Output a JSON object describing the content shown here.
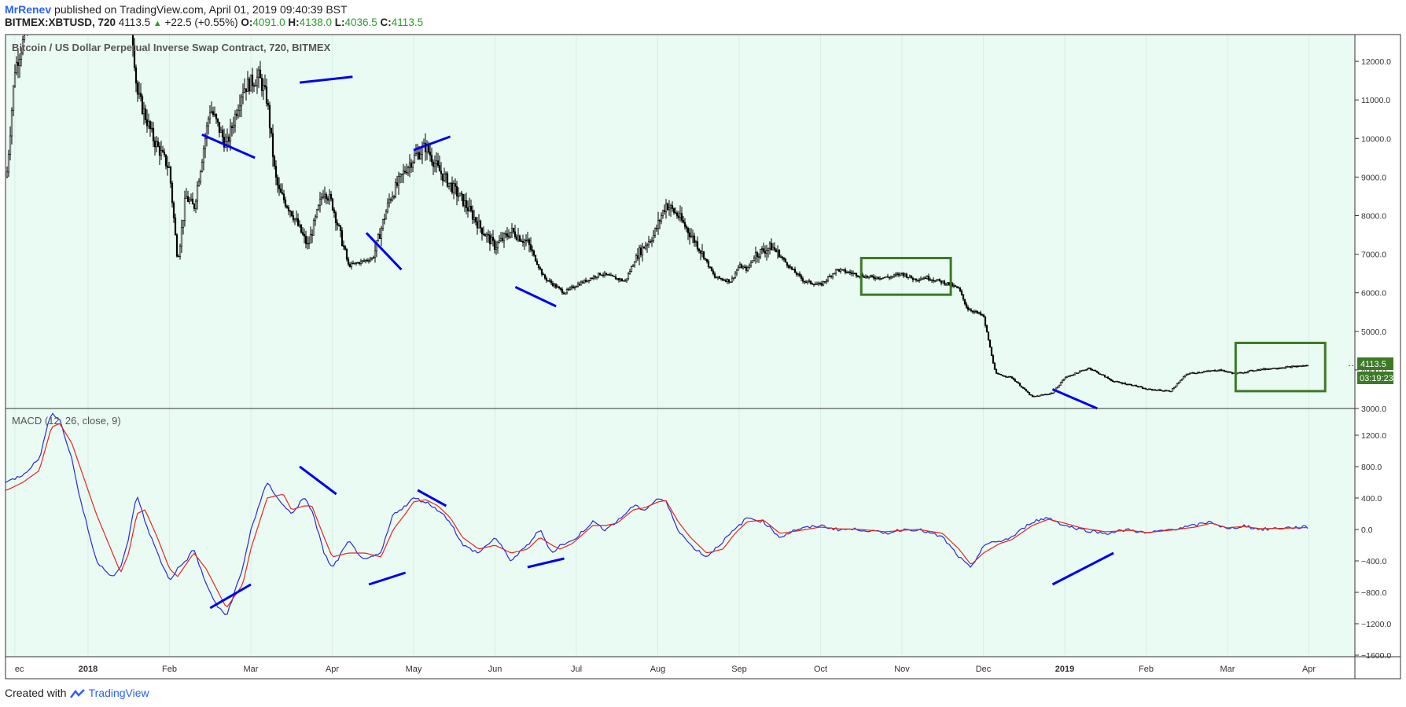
{
  "header": {
    "author": "MrRenev",
    "published_text": "published on TradingView.com, April 01, 2019 09:40:39 BST",
    "symbol": "BITMEX:XBTUSD, 720",
    "last": "4113.5",
    "change": "+22.5 (+0.55%)",
    "open_label": "O:",
    "open": "4091.0",
    "high_label": "H:",
    "high": "4138.0",
    "low_label": "L:",
    "low": "4036.5",
    "close_label": "C:",
    "close": "4113.5"
  },
  "price_pane": {
    "title": "Bitcoin / US Dollar Perpetual Inverse Swap Contract, 720, BITMEX",
    "price_badge": "4113.5",
    "countdown_badge": "03:19:23"
  },
  "macd_pane": {
    "title": "MACD (12, 26, close, 9)"
  },
  "footer": {
    "created_with": "Created with",
    "brand": "TradingView"
  },
  "colors": {
    "pane_bg": "#e9fbf3",
    "candles": "#000000",
    "macd_line": "#2b2bd9",
    "signal_line": "#e8261f",
    "trendlines": "#0000ee",
    "boxes": "#3c7a25",
    "badge": "#3c7a25"
  },
  "chart_data": [
    {
      "type": "candlestick",
      "title": "Bitcoin / US Dollar Perpetual Inverse Swap Contract, 720, BITMEX",
      "y_axis_position": "right",
      "ylim": [
        3000,
        12700
      ],
      "y_ticks": [
        "3000.0",
        "4000.0",
        "5000.0",
        "6000.0",
        "7000.0",
        "8000.0",
        "9000.0",
        "10000.0",
        "11000.0",
        "12000.0"
      ],
      "x_ticks": [
        "ec",
        "2018",
        "Feb",
        "Mar",
        "Apr",
        "May",
        "Jun",
        "Jul",
        "Aug",
        "Sep",
        "Oct",
        "Nov",
        "Dec",
        "2019",
        "Feb",
        "Mar",
        "Apr"
      ],
      "x_tick_months": [
        -0.9,
        0,
        1,
        2,
        3,
        4,
        5,
        6,
        7,
        8,
        9,
        10,
        11,
        12,
        13,
        14,
        15
      ],
      "close_path_months": [
        -1.0,
        -0.9,
        -0.7,
        -0.4,
        0.2,
        0.5,
        0.6,
        0.8,
        1.0,
        1.1,
        1.2,
        1.3,
        1.5,
        1.7,
        1.9,
        2.1,
        2.2,
        2.3,
        2.35,
        2.5,
        2.7,
        2.9,
        3.0,
        3.2,
        3.5,
        3.7,
        3.9,
        4.0,
        4.15,
        4.3,
        4.6,
        4.85,
        5.0,
        5.2,
        5.4,
        5.6,
        5.85,
        6.0,
        6.3,
        6.6,
        6.75,
        6.95,
        7.1,
        7.25,
        7.5,
        7.7,
        7.9,
        8.0,
        8.1,
        8.2,
        8.4,
        8.65,
        8.8,
        9.0,
        9.2,
        9.4,
        9.6,
        9.85,
        10.0,
        10.15,
        10.3,
        10.45,
        10.55,
        10.7,
        10.8,
        11.0,
        11.15,
        11.35,
        11.6,
        11.85,
        12.0,
        12.3,
        12.6,
        12.85,
        13.0,
        13.3,
        13.5,
        13.7,
        13.9,
        14.1,
        14.35,
        14.6,
        14.9,
        15.0
      ],
      "close_path_values": [
        9000,
        11800,
        13200,
        14500,
        13500,
        14000,
        11200,
        10000,
        9200,
        6800,
        8500,
        8200,
        10800,
        9800,
        11300,
        11600,
        11000,
        9000,
        8600,
        8100,
        7200,
        8700,
        8300,
        6700,
        6900,
        8400,
        9200,
        9500,
        9800,
        9200,
        8400,
        7600,
        7200,
        7600,
        7300,
        6400,
        6000,
        6200,
        6500,
        6300,
        7000,
        7500,
        8300,
        8000,
        7200,
        6400,
        6300,
        6700,
        6600,
        7000,
        7200,
        6600,
        6300,
        6200,
        6600,
        6500,
        6400,
        6400,
        6500,
        6350,
        6400,
        6300,
        6250,
        6100,
        5600,
        5400,
        3900,
        3800,
        3300,
        3400,
        3800,
        4050,
        3700,
        3600,
        3500,
        3450,
        3900,
        3950,
        4000,
        3900,
        4000,
        4050,
        4100,
        4113.5
      ],
      "last_price": 4113.5
    },
    {
      "type": "line",
      "title": "MACD (12, 26, close, 9)",
      "y_axis_position": "right",
      "ylim": [
        -1600,
        1400
      ],
      "y_ticks": [
        "1200.0",
        "800.0",
        "400.0",
        "0.0",
        "−400.0",
        "−800.0",
        "−1200.0",
        "−1600.0"
      ],
      "x_months": [
        -1.0,
        -0.8,
        -0.6,
        -0.45,
        -0.35,
        -0.2,
        -0.1,
        0.1,
        0.3,
        0.4,
        0.5,
        0.6,
        0.7,
        0.85,
        1.0,
        1.1,
        1.2,
        1.3,
        1.45,
        1.6,
        1.7,
        1.9,
        2.0,
        2.2,
        2.4,
        2.5,
        2.65,
        2.75,
        2.9,
        3.0,
        3.2,
        3.4,
        3.6,
        3.75,
        3.9,
        4.0,
        4.15,
        4.3,
        4.45,
        4.6,
        4.8,
        5.0,
        5.2,
        5.4,
        5.55,
        5.7,
        5.8,
        5.95,
        6.2,
        6.35,
        6.5,
        6.7,
        6.85,
        7.0,
        7.1,
        7.25,
        7.4,
        7.6,
        7.8,
        7.95,
        8.1,
        8.3,
        8.5,
        8.7,
        9.0,
        9.2,
        9.5,
        9.8,
        10.0,
        10.2,
        10.5,
        10.7,
        10.85,
        11.0,
        11.2,
        11.35,
        11.6,
        11.8,
        12.0,
        12.2,
        12.5,
        12.8,
        13.0,
        13.3,
        13.6,
        13.8,
        14.0,
        14.2,
        14.4,
        14.7,
        15.0
      ],
      "series": [
        {
          "values": [
            600,
            700,
            900,
            1500,
            1400,
            900,
            400,
            -400,
            -600,
            -500,
            -100,
            450,
            100,
            -300,
            -650,
            -500,
            -400,
            -250,
            -700,
            -1000,
            -1100,
            -500,
            0,
            600,
            300,
            200,
            400,
            250,
            -300,
            -500,
            -150,
            -400,
            -300,
            200,
            300,
            400,
            350,
            250,
            100,
            -200,
            -300,
            -100,
            -400,
            -200,
            0,
            -300,
            -200,
            -150,
            100,
            0,
            100,
            300,
            250,
            400,
            350,
            0,
            -200,
            -350,
            -150,
            0,
            150,
            100,
            -100,
            0,
            50,
            0,
            0,
            -50,
            0,
            0,
            -100,
            -350,
            -500,
            -200,
            -150,
            -100,
            100,
            150,
            50,
            0,
            -50,
            0,
            -50,
            0,
            50,
            100,
            0,
            50,
            0,
            20,
            30
          ]
        },
        {
          "values": [
            500,
            600,
            750,
            1300,
            1350,
            1100,
            800,
            200,
            -300,
            -550,
            -300,
            200,
            250,
            -100,
            -500,
            -600,
            -450,
            -300,
            -500,
            -800,
            -1000,
            -700,
            -250,
            400,
            450,
            250,
            300,
            300,
            -100,
            -350,
            -300,
            -300,
            -350,
            0,
            200,
            350,
            380,
            300,
            150,
            -100,
            -250,
            -200,
            -300,
            -250,
            -100,
            -200,
            -250,
            -180,
            50,
            50,
            80,
            250,
            280,
            350,
            370,
            100,
            -100,
            -300,
            -250,
            -50,
            100,
            120,
            -50,
            -20,
            30,
            10,
            0,
            -30,
            -10,
            0,
            -50,
            -250,
            -450,
            -300,
            -180,
            -130,
            50,
            130,
            80,
            20,
            -30,
            -10,
            -40,
            -10,
            30,
            80,
            20,
            40,
            10,
            15,
            25
          ]
        }
      ]
    }
  ]
}
